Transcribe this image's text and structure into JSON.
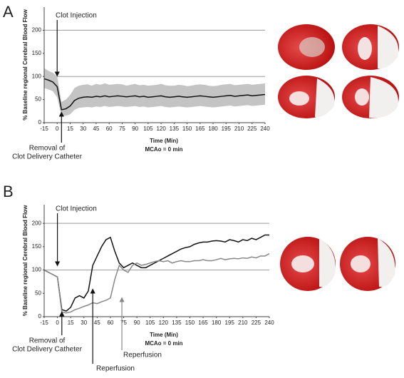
{
  "chart_data": [
    {
      "type": "line",
      "panel_label": "A",
      "y_label": "% Baseline regional Cerebral Blood Flow",
      "x_label": "Time (Min)",
      "note": "MCAo = 0 min",
      "xlim": [
        -15,
        240
      ],
      "xticks": [
        -15,
        0,
        15,
        30,
        45,
        60,
        75,
        90,
        105,
        120,
        135,
        150,
        165,
        180,
        195,
        210,
        225,
        240
      ],
      "ylim": [
        0,
        250
      ],
      "yticks": [
        0,
        50,
        100,
        150,
        200
      ],
      "hlines": [
        100,
        200
      ],
      "x": [
        -15,
        -10,
        -5,
        0,
        5,
        10,
        15,
        20,
        25,
        30,
        35,
        40,
        45,
        50,
        55,
        60,
        65,
        70,
        75,
        80,
        85,
        90,
        95,
        100,
        105,
        110,
        115,
        120,
        125,
        130,
        135,
        140,
        145,
        150,
        155,
        160,
        165,
        170,
        175,
        180,
        185,
        190,
        195,
        200,
        205,
        210,
        215,
        220,
        225,
        230,
        235,
        240
      ],
      "band": {
        "color": "#c4c4c4",
        "upper": [
          118,
          112,
          108,
          100,
          45,
          50,
          60,
          75,
          80,
          82,
          83,
          80,
          84,
          82,
          85,
          82,
          83,
          84,
          83,
          80,
          82,
          84,
          81,
          82,
          80,
          81,
          82,
          84,
          81,
          80,
          80,
          82,
          81,
          79,
          80,
          82,
          83,
          82,
          80,
          79,
          80,
          82,
          83,
          84,
          81,
          82,
          83,
          84,
          82,
          83,
          84,
          85
        ],
        "lower": [
          75,
          72,
          68,
          55,
          15,
          15,
          18,
          28,
          32,
          33,
          34,
          33,
          35,
          34,
          36,
          34,
          35,
          36,
          35,
          34,
          35,
          36,
          34,
          35,
          33,
          34,
          35,
          36,
          34,
          33,
          34,
          35,
          34,
          33,
          34,
          35,
          36,
          35,
          34,
          33,
          34,
          35,
          36,
          37,
          35,
          36,
          37,
          38,
          36,
          37,
          38,
          39
        ]
      },
      "series": [
        {
          "color": "#111111",
          "values": [
            95,
            92,
            88,
            78,
            28,
            30,
            36,
            48,
            53,
            55,
            56,
            55,
            57,
            56,
            58,
            56,
            57,
            58,
            57,
            56,
            57,
            58,
            56,
            57,
            55,
            56,
            57,
            58,
            56,
            55,
            56,
            57,
            56,
            55,
            56,
            57,
            58,
            57,
            56,
            55,
            56,
            57,
            58,
            59,
            57,
            58,
            59,
            60,
            58,
            59,
            60,
            61
          ]
        }
      ],
      "annotations": [
        {
          "text": [
            "Clot Injection"
          ],
          "x": 0,
          "color": "#111111"
        },
        {
          "text": [
            "Removal of",
            "Clot Delivery Catheter"
          ],
          "x": 5,
          "color": "#111111"
        }
      ]
    },
    {
      "type": "line",
      "panel_label": "B",
      "y_label": "% Baseline regional Cerebral Blood Flow",
      "x_label": "Time (Min)",
      "note": "MCAo = 0 min",
      "xlim": [
        -15,
        240
      ],
      "xticks": [
        -15,
        0,
        15,
        30,
        45,
        60,
        75,
        90,
        105,
        120,
        135,
        150,
        165,
        180,
        195,
        210,
        225,
        240
      ],
      "ylim": [
        0,
        240
      ],
      "yticks": [
        0,
        50,
        100,
        150,
        200
      ],
      "hlines": [
        100,
        200
      ],
      "x": [
        -15,
        -10,
        -5,
        0,
        5,
        10,
        15,
        20,
        25,
        30,
        35,
        40,
        45,
        50,
        55,
        60,
        65,
        70,
        75,
        80,
        85,
        90,
        95,
        100,
        105,
        110,
        115,
        120,
        125,
        130,
        135,
        140,
        145,
        150,
        155,
        160,
        165,
        170,
        175,
        180,
        185,
        190,
        195,
        200,
        205,
        210,
        215,
        220,
        225,
        230,
        235,
        240
      ],
      "series": [
        {
          "color": "#111111",
          "values": [
            100,
            95,
            90,
            85,
            15,
            12,
            20,
            40,
            45,
            40,
            55,
            110,
            130,
            150,
            165,
            170,
            140,
            115,
            105,
            110,
            115,
            110,
            105,
            105,
            110,
            115,
            120,
            125,
            130,
            135,
            140,
            145,
            148,
            150,
            155,
            158,
            160,
            160,
            162,
            163,
            162,
            160,
            165,
            163,
            160,
            165,
            163,
            168,
            165,
            170,
            175,
            175
          ]
        },
        {
          "color": "#888888",
          "values": [
            100,
            95,
            90,
            85,
            10,
            8,
            10,
            15,
            18,
            22,
            25,
            30,
            28,
            32,
            35,
            40,
            80,
            110,
            100,
            95,
            110,
            115,
            110,
            112,
            115,
            118,
            120,
            118,
            120,
            115,
            118,
            120,
            118,
            118,
            120,
            120,
            122,
            120,
            120,
            122,
            125,
            122,
            124,
            125,
            124,
            126,
            125,
            128,
            126,
            130,
            130,
            135
          ]
        }
      ],
      "annotations": [
        {
          "text": [
            "Clot Injection"
          ],
          "x": 0,
          "color": "#111111"
        },
        {
          "text": [
            "Removal of",
            "Clot Delivery Catheter"
          ],
          "x": 5,
          "color": "#111111"
        },
        {
          "text": [
            "Reperfusion"
          ],
          "x": 40,
          "color": "#111111"
        },
        {
          "text": [
            "Reperfusion"
          ],
          "x": 73,
          "color": "#888888"
        }
      ]
    }
  ]
}
